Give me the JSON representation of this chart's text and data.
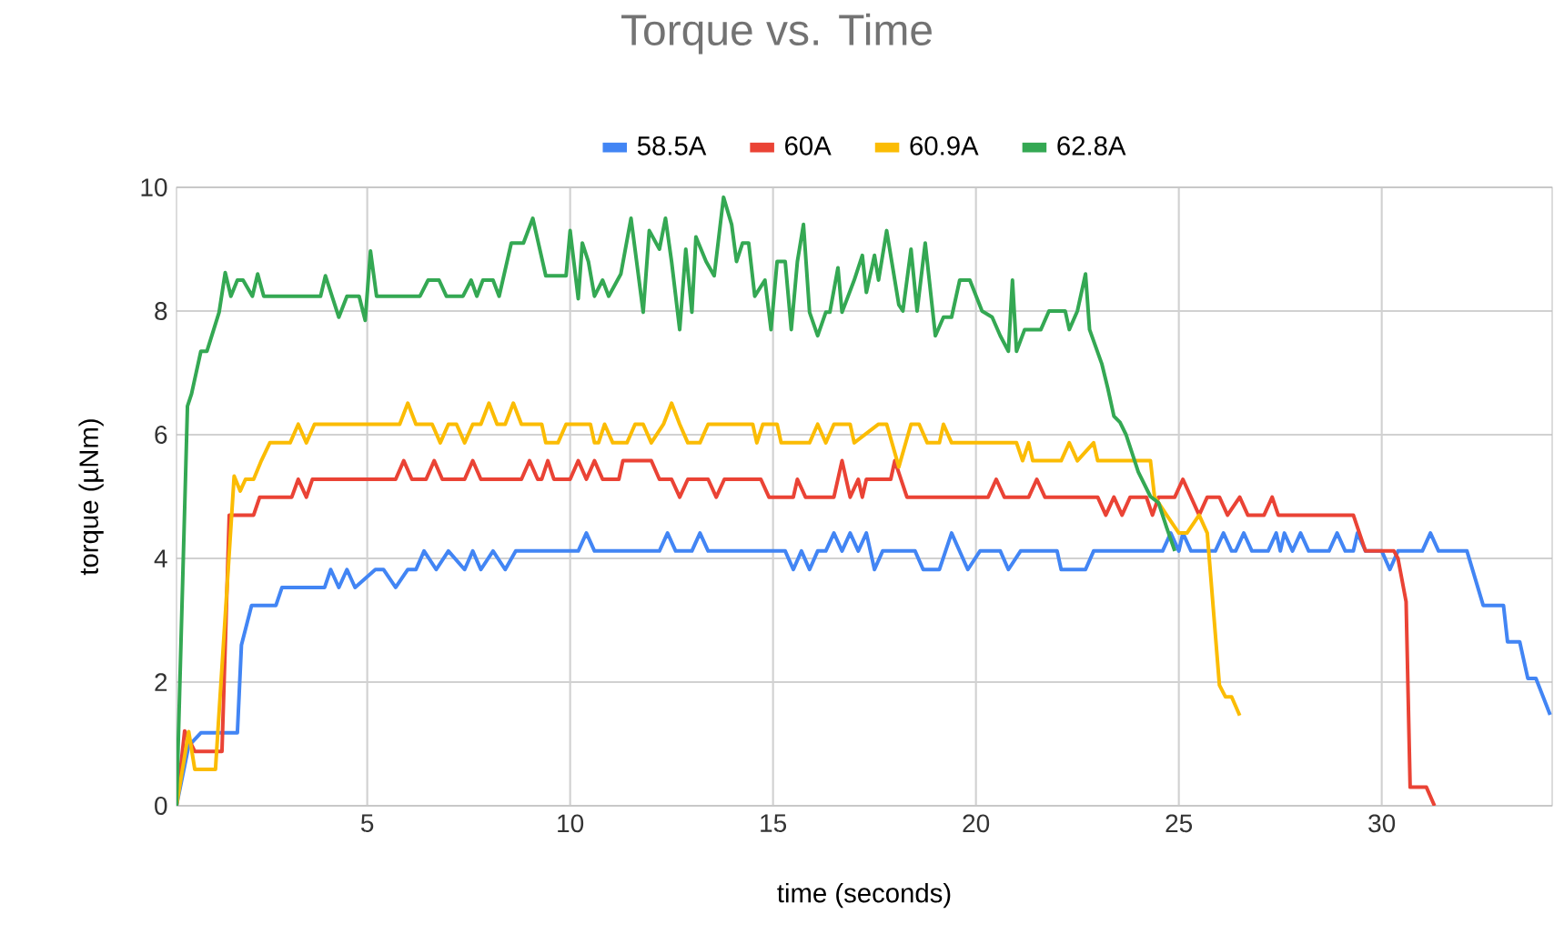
{
  "chart_data": {
    "type": "line",
    "title": "Torque vs. Time",
    "xlabel": "time (seconds)",
    "ylabel": "torque (µNm)",
    "xlim": [
      0.3,
      34.2
    ],
    "ylim": [
      0,
      10
    ],
    "xticks": [
      5,
      10,
      15,
      20,
      25,
      30
    ],
    "yticks": [
      0,
      2,
      4,
      6,
      8,
      10
    ],
    "grid": true,
    "legend": "top",
    "line_style": "solid",
    "marker": "none",
    "series": [
      {
        "name": "58.5A",
        "color": "#4285f4",
        "x": [
          0.3,
          0.6,
          0.9,
          1.8,
          1.9,
          2.15,
          2.75,
          2.9,
          3.95,
          4.1,
          4.3,
          4.5,
          4.7,
          5.2,
          5.4,
          5.7,
          6.0,
          6.2,
          6.4,
          6.7,
          7.0,
          7.4,
          7.6,
          7.8,
          8.1,
          8.4,
          8.66,
          10.2,
          10.4,
          10.6,
          12.2,
          12.4,
          12.6,
          13.0,
          13.2,
          13.4,
          15.3,
          15.5,
          15.7,
          15.9,
          16.1,
          16.3,
          16.5,
          16.7,
          16.9,
          17.1,
          17.3,
          17.5,
          17.7,
          18.5,
          18.7,
          19.1,
          19.4,
          19.8,
          20.1,
          20.6,
          20.8,
          21.1,
          21.4,
          22.0,
          22.1,
          22.7,
          22.9,
          23.1,
          24.6,
          24.8,
          25.0,
          25.1,
          25.3,
          25.9,
          26.1,
          26.3,
          26.4,
          26.6,
          26.8,
          27.2,
          27.4,
          27.5,
          27.6,
          27.8,
          28.0,
          28.2,
          28.7,
          28.9,
          29.1,
          29.3,
          29.4,
          29.6,
          30.0,
          30.2,
          30.4,
          31.0,
          31.2,
          31.4,
          32.1,
          32.5,
          33.0,
          33.1,
          33.4,
          33.6,
          33.8,
          34.15
        ],
        "values": [
          0,
          0.97,
          1.18,
          1.18,
          2.6,
          3.24,
          3.24,
          3.53,
          3.53,
          3.82,
          3.53,
          3.82,
          3.53,
          3.82,
          3.82,
          3.53,
          3.82,
          3.82,
          4.12,
          3.82,
          4.12,
          3.82,
          4.12,
          3.82,
          4.12,
          3.82,
          4.12,
          4.12,
          4.41,
          4.12,
          4.12,
          4.41,
          4.12,
          4.12,
          4.41,
          4.12,
          4.12,
          3.82,
          4.12,
          3.82,
          4.12,
          4.12,
          4.41,
          4.12,
          4.41,
          4.12,
          4.41,
          3.82,
          4.12,
          4.12,
          3.82,
          3.82,
          4.41,
          3.82,
          4.12,
          4.12,
          3.82,
          4.12,
          4.12,
          4.12,
          3.82,
          3.82,
          4.12,
          4.12,
          4.12,
          4.41,
          4.12,
          4.41,
          4.12,
          4.12,
          4.41,
          4.12,
          4.12,
          4.41,
          4.12,
          4.12,
          4.41,
          4.12,
          4.41,
          4.12,
          4.41,
          4.12,
          4.12,
          4.41,
          4.12,
          4.12,
          4.41,
          4.12,
          4.12,
          3.82,
          4.12,
          4.12,
          4.41,
          4.12,
          4.12,
          3.24,
          3.24,
          2.65,
          2.65,
          2.06,
          2.06,
          1.47
        ]
      },
      {
        "name": "60A",
        "color": "#ea4335",
        "x": [
          0.3,
          0.5,
          0.75,
          1.42,
          1.6,
          1.75,
          2.2,
          2.35,
          3.14,
          3.3,
          3.5,
          3.65,
          5.7,
          5.9,
          6.1,
          6.45,
          6.65,
          6.85,
          7.4,
          7.6,
          7.8,
          8.8,
          9.0,
          9.2,
          9.3,
          9.45,
          9.6,
          10.0,
          10.2,
          10.4,
          10.6,
          10.8,
          11.2,
          11.3,
          12.0,
          12.2,
          12.5,
          12.7,
          12.9,
          13.4,
          13.6,
          13.8,
          14.7,
          14.9,
          15.5,
          15.6,
          15.8,
          16.0,
          16.5,
          16.7,
          16.9,
          17.1,
          17.2,
          17.3,
          17.5,
          17.9,
          18.0,
          18.3,
          20.3,
          20.5,
          20.7,
          21.3,
          21.5,
          21.7,
          23.0,
          23.2,
          23.4,
          23.6,
          23.8,
          24.2,
          24.35,
          24.5,
          24.9,
          25.1,
          25.3,
          25.5,
          25.7,
          26.0,
          26.2,
          26.5,
          26.7,
          27.1,
          27.3,
          27.45,
          29.3,
          29.6,
          30.3,
          30.4,
          30.6,
          30.7,
          31.1,
          31.3
        ],
        "values": [
          0,
          1.21,
          0.88,
          0.88,
          4.7,
          4.7,
          4.7,
          4.99,
          4.99,
          5.28,
          4.99,
          5.28,
          5.28,
          5.58,
          5.28,
          5.28,
          5.58,
          5.28,
          5.28,
          5.58,
          5.28,
          5.28,
          5.58,
          5.28,
          5.28,
          5.58,
          5.28,
          5.28,
          5.58,
          5.28,
          5.58,
          5.28,
          5.28,
          5.58,
          5.58,
          5.28,
          5.28,
          4.99,
          5.28,
          5.28,
          4.99,
          5.28,
          5.28,
          4.99,
          4.99,
          5.28,
          4.99,
          4.99,
          4.99,
          5.58,
          4.99,
          5.28,
          4.99,
          5.28,
          5.28,
          5.28,
          5.58,
          4.99,
          4.99,
          5.28,
          4.99,
          4.99,
          5.28,
          4.99,
          4.99,
          4.7,
          4.99,
          4.7,
          4.99,
          4.99,
          4.7,
          4.99,
          4.99,
          5.28,
          4.99,
          4.7,
          4.99,
          4.99,
          4.7,
          4.99,
          4.7,
          4.7,
          4.99,
          4.7,
          4.7,
          4.12,
          4.12,
          4.0,
          3.3,
          0.3,
          0.3,
          0
        ]
      },
      {
        "name": "60.9A",
        "color": "#fbbc04",
        "x": [
          0.3,
          0.6,
          0.75,
          1.26,
          1.72,
          1.87,
          2.0,
          2.2,
          2.39,
          2.6,
          3.1,
          3.3,
          3.5,
          3.7,
          5.8,
          6.0,
          6.2,
          6.6,
          6.8,
          7.0,
          7.2,
          7.4,
          7.6,
          7.8,
          8.0,
          8.2,
          8.4,
          8.6,
          8.8,
          9.3,
          9.4,
          9.7,
          9.9,
          10.5,
          10.6,
          10.7,
          10.85,
          11.05,
          11.4,
          11.6,
          11.8,
          12.0,
          12.3,
          12.5,
          12.7,
          12.9,
          13.2,
          13.4,
          14.5,
          14.6,
          14.75,
          15.1,
          15.2,
          15.9,
          16.1,
          16.3,
          16.5,
          16.9,
          17.0,
          17.6,
          17.8,
          18.1,
          18.4,
          18.6,
          18.8,
          19.1,
          19.2,
          19.4,
          21.0,
          21.15,
          21.3,
          21.4,
          22.1,
          22.3,
          22.5,
          22.9,
          23.0,
          24.3,
          24.4,
          24.7,
          25.0,
          25.2,
          25.5,
          25.7,
          26.0,
          26.15,
          26.3,
          26.5
        ],
        "values": [
          0,
          1.2,
          0.59,
          0.59,
          5.33,
          5.09,
          5.28,
          5.28,
          5.58,
          5.87,
          5.87,
          6.17,
          5.87,
          6.17,
          6.17,
          6.51,
          6.17,
          6.17,
          5.87,
          6.17,
          6.17,
          5.87,
          6.17,
          6.17,
          6.51,
          6.17,
          6.17,
          6.51,
          6.17,
          6.17,
          5.87,
          5.87,
          6.17,
          6.17,
          5.87,
          5.87,
          6.17,
          5.87,
          5.87,
          6.17,
          6.17,
          5.87,
          6.17,
          6.51,
          6.17,
          5.87,
          5.87,
          6.17,
          6.17,
          5.87,
          6.17,
          6.17,
          5.87,
          5.87,
          6.17,
          5.87,
          6.17,
          6.17,
          5.87,
          6.17,
          6.17,
          5.48,
          6.17,
          6.17,
          5.87,
          5.87,
          6.17,
          5.87,
          5.87,
          5.58,
          5.87,
          5.58,
          5.58,
          5.87,
          5.58,
          5.87,
          5.58,
          5.58,
          5.0,
          4.7,
          4.41,
          4.41,
          4.7,
          4.41,
          1.95,
          1.76,
          1.76,
          1.46
        ]
      },
      {
        "name": "62.8A",
        "color": "#34a853",
        "x": [
          0.3,
          0.57,
          0.67,
          0.9,
          1.05,
          1.35,
          1.5,
          1.64,
          1.8,
          1.94,
          2.17,
          2.3,
          2.45,
          3.85,
          3.97,
          4.3,
          4.5,
          4.8,
          4.95,
          5.08,
          5.23,
          6.3,
          6.5,
          6.77,
          6.95,
          7.36,
          7.56,
          7.7,
          7.85,
          8.1,
          8.25,
          8.55,
          8.85,
          9.08,
          9.4,
          9.9,
          10.0,
          10.2,
          10.3,
          10.45,
          10.6,
          10.8,
          10.95,
          11.25,
          11.5,
          11.8,
          11.95,
          12.2,
          12.35,
          12.5,
          12.7,
          12.85,
          13.0,
          13.1,
          13.35,
          13.55,
          13.78,
          13.98,
          14.1,
          14.25,
          14.4,
          14.55,
          14.8,
          14.95,
          15.1,
          15.3,
          15.45,
          15.6,
          15.75,
          15.9,
          16.1,
          16.3,
          16.4,
          16.6,
          16.7,
          17.0,
          17.2,
          17.3,
          17.5,
          17.6,
          17.8,
          18.1,
          18.2,
          18.4,
          18.55,
          18.75,
          19.0,
          19.2,
          19.4,
          19.6,
          19.85,
          20.15,
          20.4,
          20.6,
          20.8,
          20.9,
          21.0,
          21.2,
          21.6,
          21.8,
          22.2,
          22.3,
          22.5,
          22.7,
          22.8,
          23.1,
          23.25,
          23.4,
          23.55,
          23.7,
          24.0,
          24.3,
          24.5,
          24.7,
          24.9
        ],
        "values": [
          0,
          6.46,
          6.66,
          7.35,
          7.35,
          7.98,
          8.62,
          8.24,
          8.5,
          8.5,
          8.24,
          8.6,
          8.24,
          8.24,
          8.57,
          7.9,
          8.24,
          8.24,
          7.85,
          8.97,
          8.24,
          8.24,
          8.5,
          8.5,
          8.24,
          8.24,
          8.5,
          8.24,
          8.5,
          8.5,
          8.24,
          9.1,
          9.1,
          9.5,
          8.57,
          8.57,
          9.3,
          8.2,
          9.1,
          8.8,
          8.24,
          8.5,
          8.24,
          8.6,
          9.5,
          7.98,
          9.3,
          9.0,
          9.5,
          8.8,
          7.7,
          9.0,
          7.98,
          9.2,
          8.8,
          8.57,
          9.84,
          9.4,
          8.8,
          9.1,
          9.1,
          8.24,
          8.5,
          7.7,
          8.8,
          8.8,
          7.7,
          8.8,
          9.4,
          7.98,
          7.6,
          7.98,
          7.98,
          8.7,
          7.98,
          8.5,
          8.9,
          8.3,
          8.9,
          8.5,
          9.3,
          8.1,
          8.0,
          9.0,
          8.0,
          9.1,
          7.6,
          7.9,
          7.9,
          8.5,
          8.5,
          8.0,
          7.9,
          7.6,
          7.35,
          8.5,
          7.35,
          7.7,
          7.7,
          8.0,
          8.0,
          7.7,
          8.0,
          8.6,
          7.7,
          7.15,
          6.75,
          6.3,
          6.2,
          6.0,
          5.4,
          5.0,
          4.9,
          4.5,
          4.12
        ]
      }
    ]
  }
}
